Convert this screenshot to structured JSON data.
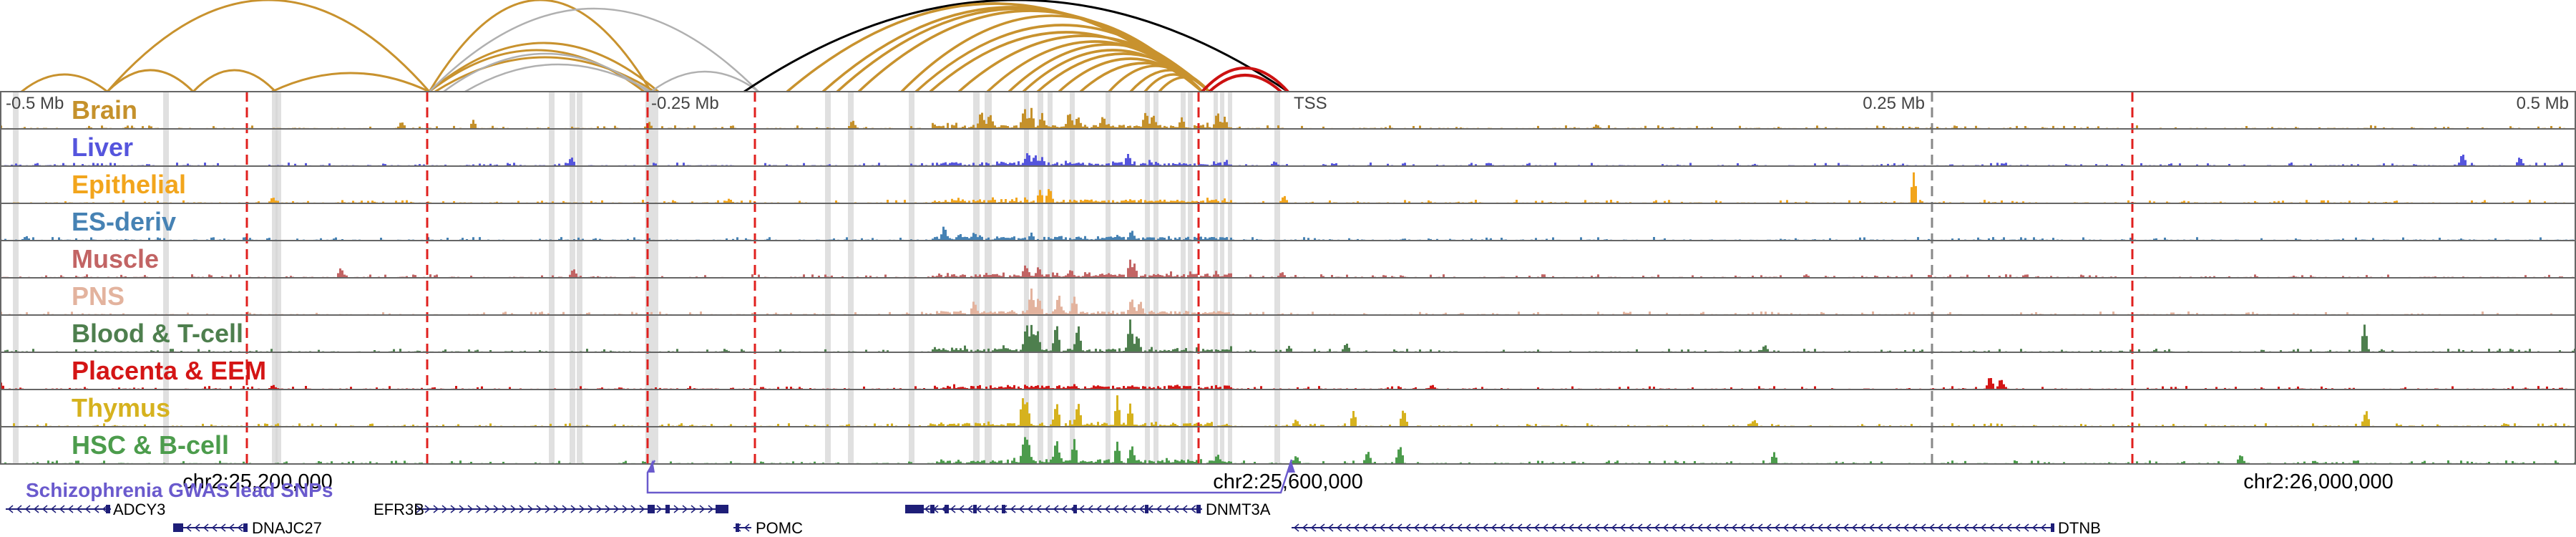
{
  "tracks": [
    {
      "name": "Brain",
      "color": "#C5912B"
    },
    {
      "name": "Liver",
      "color": "#5555DD"
    },
    {
      "name": "Epithelial",
      "color": "#F2A51C"
    },
    {
      "name": "ES-deriv",
      "color": "#4682B4"
    },
    {
      "name": "Muscle",
      "color": "#C26464"
    },
    {
      "name": "PNS",
      "color": "#E3B39E"
    },
    {
      "name": "Blood & T-cell",
      "color": "#4E7F4E"
    },
    {
      "name": "Placenta & EEM",
      "color": "#D41515"
    },
    {
      "name": "Thymus",
      "color": "#D6B21E"
    },
    {
      "name": "HSC & B-cell",
      "color": "#4C9C4C"
    }
  ],
  "distance_labels": [
    "-0.5 Mb",
    "-0.25 Mb",
    "TSS",
    "0.25 Mb",
    "0.5 Mb"
  ],
  "coordinate_labels": [
    "chr2:25,200,000",
    "chr2:25,600,000",
    "chr2:26,000,000"
  ],
  "snp_track_label": "Schizophrenia GWAS lead SNPs",
  "genes": [
    "ADCY3",
    "DNAJC27",
    "EFR3B",
    "POMC",
    "DNMT3A",
    "DTNB"
  ],
  "colors": {
    "grid_line": "#666666",
    "red_dashed": "#E0201E",
    "gray_dashed": "#888888",
    "highlight_band": "#D6D6D6",
    "arc_main": "#C8922E",
    "arc_gray": "#B0B0B0",
    "arc_black": "#000000",
    "arc_red": "#CC1111",
    "snp": "#6A5ACD",
    "gene": "#1E1E78"
  }
}
